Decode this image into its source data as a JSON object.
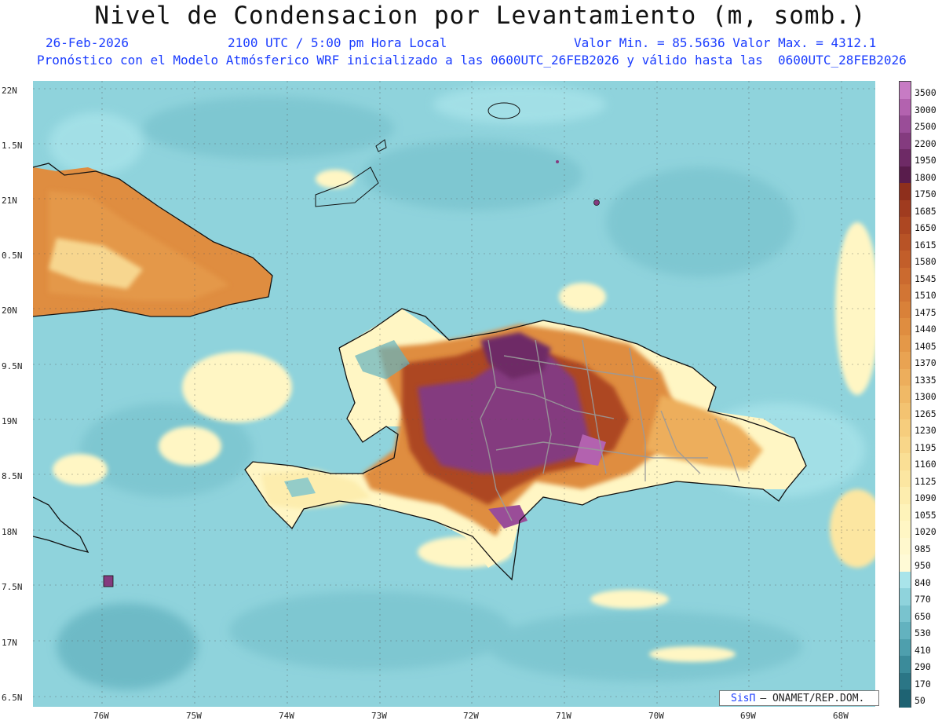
{
  "title": "Nivel de Condensacion por Levantamiento (m, somb.)",
  "date": "26-Feb-2026",
  "time": "2100 UTC / 5:00 pm Hora Local",
  "valrange": "Valor Min. = 85.5636  Valor Max. = 4312.1",
  "model_info": "Pronóstico con el Modelo Atmósferico WRF inicializado a las 0600UTC_26FEB2026 y válido hasta las  0600UTC_28FEB2026",
  "credit": {
    "brand": "SisΠ",
    "text": "– ONAMET/REP.DOM."
  },
  "lat_labels": [
    "22N",
    "1.5N",
    "21N",
    "0.5N",
    "20N",
    "9.5N",
    "19N",
    "8.5N",
    "18N",
    "7.5N",
    "17N",
    "6.5N"
  ],
  "lon_labels": [
    "76W",
    "75W",
    "74W",
    "73W",
    "72W",
    "71W",
    "70W",
    "69W",
    "68W"
  ],
  "colorbar": {
    "levels": [
      "3500",
      "3000",
      "2500",
      "2200",
      "1950",
      "1800",
      "1750",
      "1685",
      "1650",
      "1615",
      "1580",
      "1545",
      "1510",
      "1475",
      "1440",
      "1405",
      "1370",
      "1335",
      "1300",
      "1265",
      "1230",
      "1195",
      "1160",
      "1125",
      "1090",
      "1055",
      "1020",
      "985",
      "950",
      "840",
      "770",
      "650",
      "530",
      "410",
      "290",
      "170",
      "50"
    ],
    "colors": [
      "#c77bc4",
      "#b362af",
      "#9a4d98",
      "#843b7f",
      "#6e2a66",
      "#591c4c",
      "#8e2f1c",
      "#a03b1f",
      "#ad4722",
      "#b85326",
      "#c25e2a",
      "#cb6a2f",
      "#d27534",
      "#d98139",
      "#df8d40",
      "#e49848",
      "#e9a352",
      "#edae5c",
      "#f0b966",
      "#f3c371",
      "#f6cd7d",
      "#f8d689",
      "#fadf95",
      "#fce6a1",
      "#fdedae",
      "#fef3ba",
      "#fff6c4",
      "#fff8cd",
      "#fffad6",
      "#a9e4ea",
      "#8fd3dc",
      "#79c3ce",
      "#63b2bf",
      "#4e9fad",
      "#3b8b9a",
      "#2b7686",
      "#1e6373"
    ]
  }
}
